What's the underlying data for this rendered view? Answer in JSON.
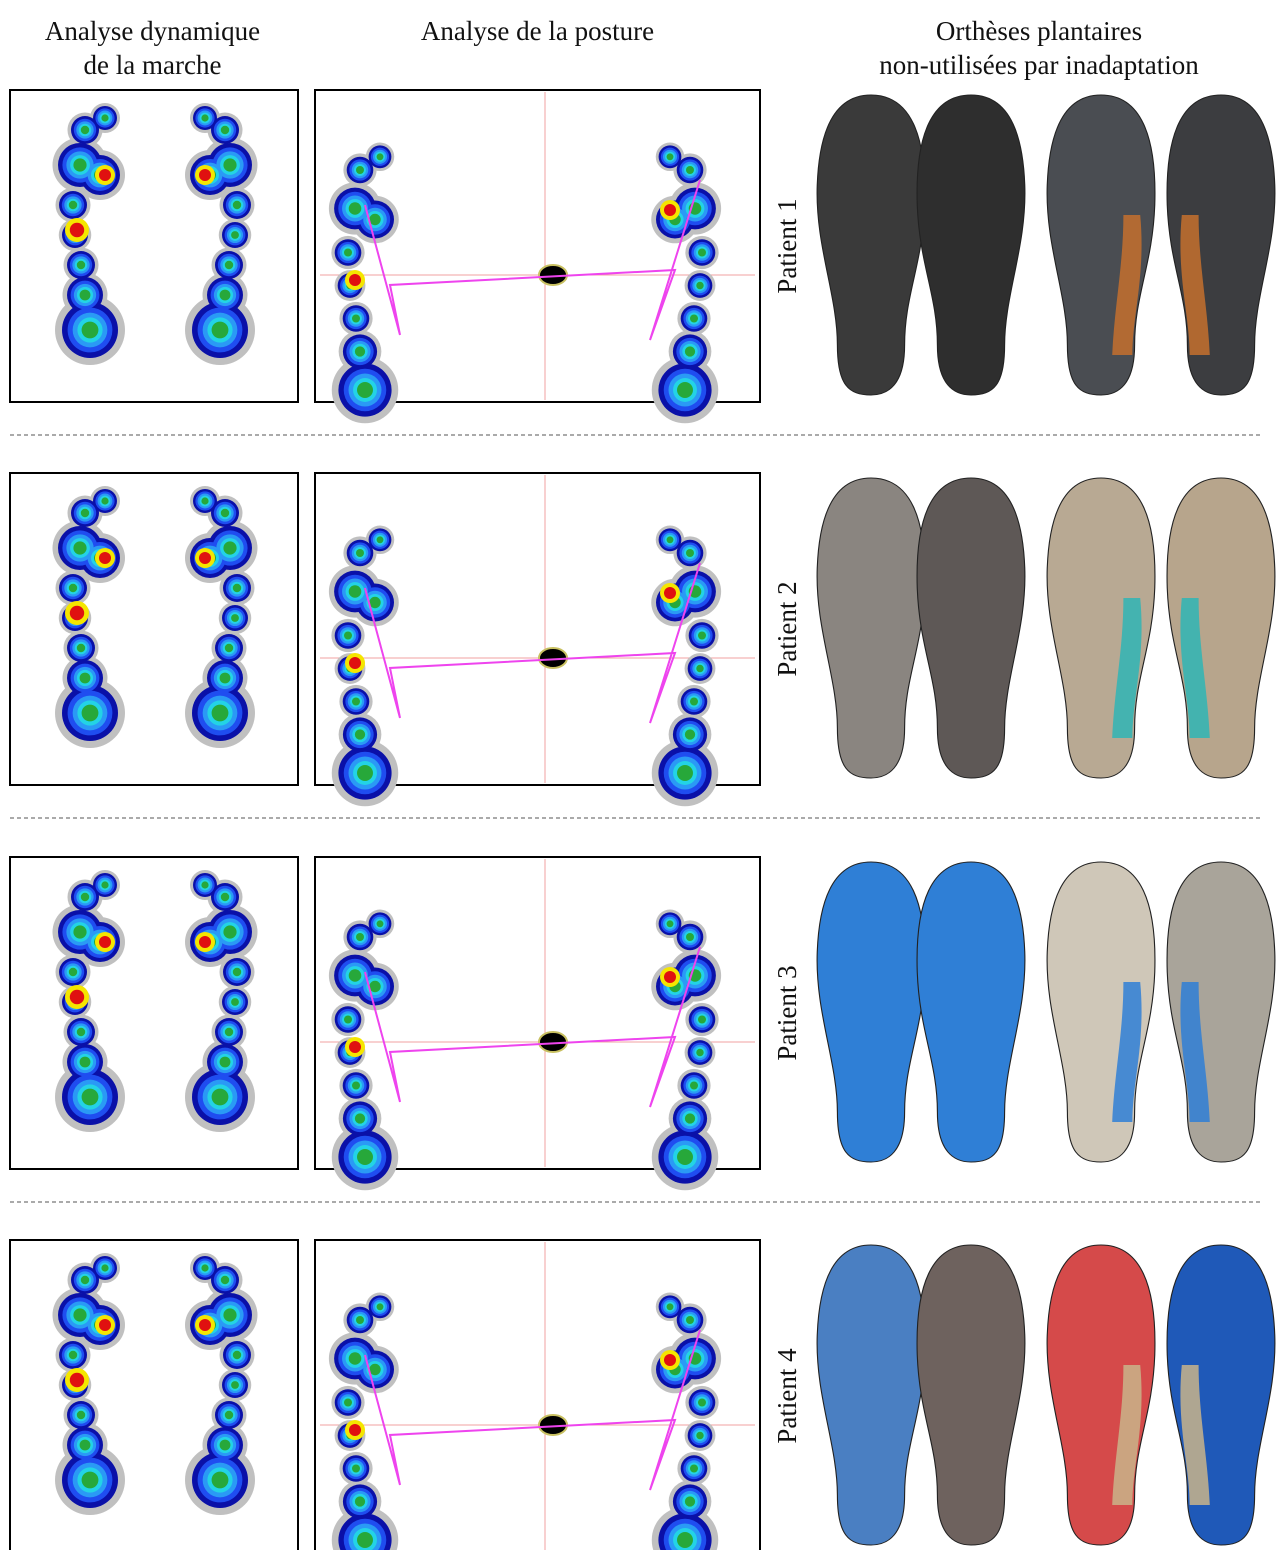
{
  "columns": [
    {
      "title_lines": [
        "Analyse dynamique",
        "de la marche"
      ]
    },
    {
      "title_lines": [
        "Analyse de la posture"
      ]
    },
    {
      "title_lines": [
        "Orthèses plantaires",
        "non-utilisées par inadaptation"
      ]
    }
  ],
  "patients": [
    "Patient 1",
    "Patient 2",
    "Patient 3",
    "Patient 4"
  ]
}
